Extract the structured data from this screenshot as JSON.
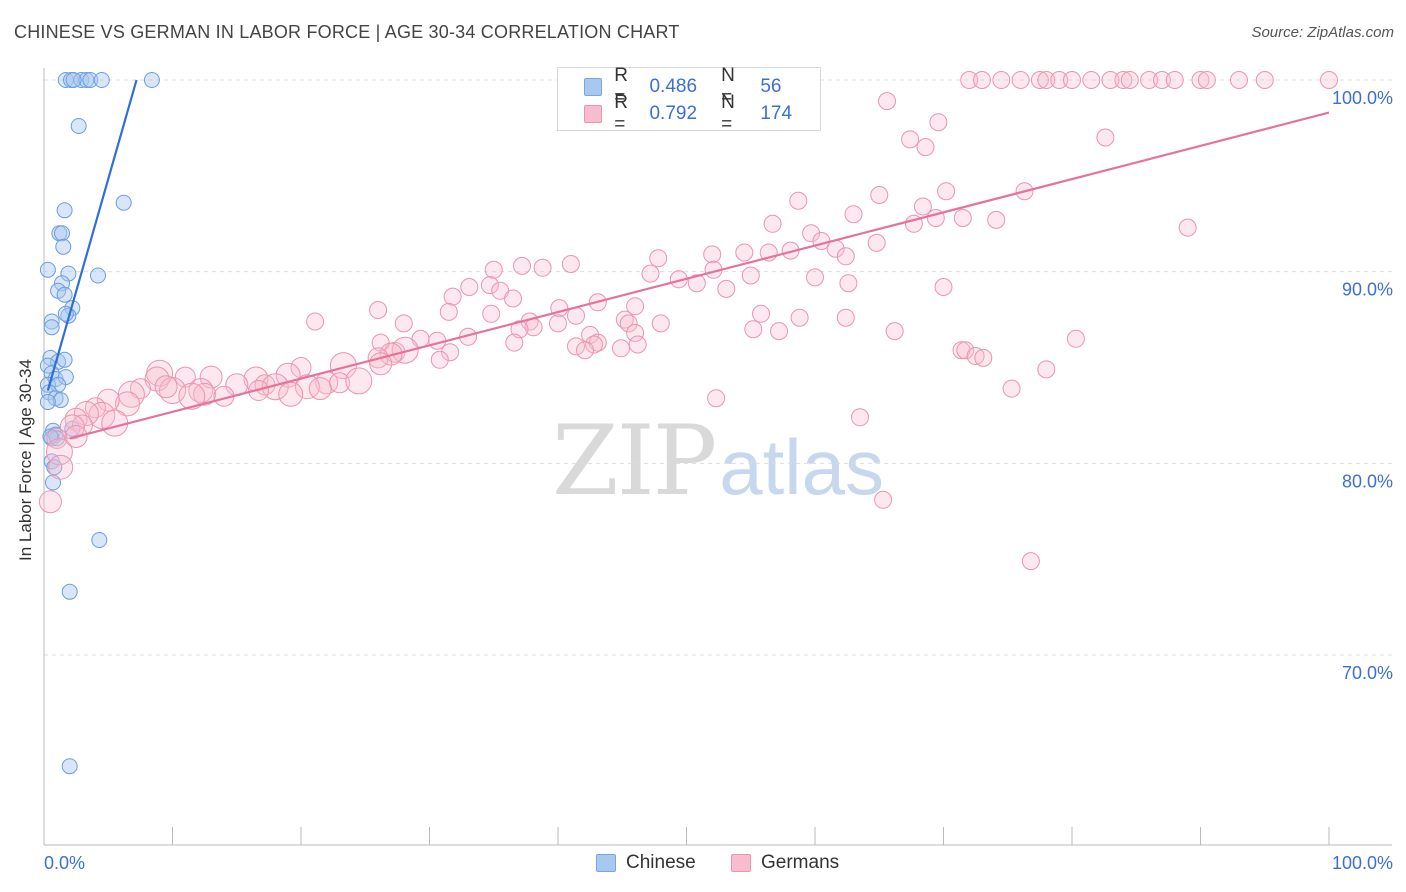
{
  "header": {
    "title": "CHINESE VS GERMAN IN LABOR FORCE | AGE 30-34 CORRELATION CHART",
    "source": "Source: ZipAtlas.com"
  },
  "watermark": {
    "zip": "ZIP",
    "atlas": "atlas"
  },
  "legend": {
    "rows": [
      {
        "r_label": "R =",
        "r_value": "0.486",
        "n_label": "N =",
        "n_value": "56",
        "color": "#a9c8f0",
        "stroke": "#7aa6e0"
      },
      {
        "r_label": "R =",
        "r_value": "0.792",
        "n_label": "N =",
        "n_value": "174",
        "color": "#f7bccd",
        "stroke": "#ee93af"
      }
    ]
  },
  "bottom_legend": [
    {
      "label": "Chinese",
      "color": "#a9c8f0",
      "stroke": "#7aa6e0"
    },
    {
      "label": "Germans",
      "color": "#f7bccd",
      "stroke": "#ee93af"
    }
  ],
  "chart_data": {
    "type": "scatter",
    "title": "CHINESE VS GERMAN IN LABOR FORCE | AGE 30-34 CORRELATION CHART",
    "xlabel": "",
    "ylabel": "In Labor Force | Age 30-34",
    "xlim": [
      0,
      100
    ],
    "ylim": [
      60.5,
      101.5
    ],
    "x_tick_labels": [
      "0.0%",
      "100.0%"
    ],
    "y_ticks": [
      70,
      80,
      90,
      100
    ],
    "y_tick_labels": [
      "70.0%",
      "80.0%",
      "90.0%",
      "100.0%"
    ],
    "grid": true,
    "colors": {
      "chinese_line": "#2f6fd6",
      "german_line": "#e5739c",
      "axis_text": "#3b6fd6"
    },
    "series": [
      {
        "name": "Chinese",
        "trend": {
          "x": [
            0.3,
            7.2
          ],
          "y": [
            83.8,
            100.0
          ]
        },
        "points": [
          [
            1.7,
            100
          ],
          [
            2.1,
            100
          ],
          [
            2.9,
            100
          ],
          [
            3.3,
            100
          ],
          [
            3.6,
            100
          ],
          [
            4.5,
            100
          ],
          [
            8.4,
            100
          ],
          [
            2.3,
            100
          ],
          [
            2.7,
            97.6
          ],
          [
            1.6,
            93.2
          ],
          [
            1.2,
            92.0
          ],
          [
            1.4,
            92.0
          ],
          [
            1.5,
            91.3
          ],
          [
            6.2,
            93.6
          ],
          [
            0.3,
            90.1
          ],
          [
            1.9,
            89.9
          ],
          [
            4.2,
            89.8
          ],
          [
            1.4,
            89.4
          ],
          [
            1.1,
            89.0
          ],
          [
            1.6,
            88.8
          ],
          [
            2.2,
            88.1
          ],
          [
            1.9,
            87.7
          ],
          [
            1.7,
            87.8
          ],
          [
            0.6,
            87.4
          ],
          [
            0.6,
            87.1
          ],
          [
            0.5,
            85.5
          ],
          [
            1.1,
            85.3
          ],
          [
            1.6,
            85.4
          ],
          [
            0.3,
            85.1
          ],
          [
            0.6,
            84.7
          ],
          [
            0.9,
            84.4
          ],
          [
            1.7,
            84.5
          ],
          [
            0.3,
            84.1
          ],
          [
            1.1,
            84.1
          ],
          [
            0.4,
            83.7
          ],
          [
            0.9,
            83.4
          ],
          [
            1.3,
            83.3
          ],
          [
            0.3,
            83.2
          ],
          [
            2.2,
            81.8
          ],
          [
            0.7,
            81.7
          ],
          [
            0.9,
            81.5
          ],
          [
            0.6,
            81.3
          ],
          [
            1.0,
            81.3
          ],
          [
            0.5,
            81.4
          ],
          [
            0.6,
            80.1
          ],
          [
            0.8,
            79.8
          ],
          [
            0.7,
            79.0
          ],
          [
            4.3,
            76.0
          ],
          [
            2.0,
            73.3
          ],
          [
            2.0,
            64.2
          ]
        ]
      },
      {
        "name": "Germans",
        "trend": {
          "x": [
            2.0,
            100.0
          ],
          "y": [
            81.3,
            98.3
          ]
        },
        "points": [
          [
            72,
            100
          ],
          [
            73,
            100
          ],
          [
            74.5,
            100
          ],
          [
            76,
            100
          ],
          [
            77.5,
            100
          ],
          [
            78,
            100
          ],
          [
            79,
            100
          ],
          [
            80,
            100
          ],
          [
            81.5,
            100
          ],
          [
            83,
            100
          ],
          [
            84,
            100
          ],
          [
            84.5,
            100
          ],
          [
            86,
            100
          ],
          [
            87,
            100
          ],
          [
            88,
            100
          ],
          [
            90,
            100
          ],
          [
            90.5,
            100
          ],
          [
            93,
            100
          ],
          [
            95,
            100
          ],
          [
            100,
            100
          ],
          [
            65.6,
            98.9
          ],
          [
            69.6,
            97.8
          ],
          [
            67.4,
            96.9
          ],
          [
            68.6,
            96.5
          ],
          [
            82.6,
            97.0
          ],
          [
            70.2,
            94.2
          ],
          [
            76.3,
            94.2
          ],
          [
            65.0,
            94.0
          ],
          [
            58.7,
            93.7
          ],
          [
            68.4,
            93.4
          ],
          [
            63.0,
            93.0
          ],
          [
            69.4,
            92.8
          ],
          [
            71.5,
            92.8
          ],
          [
            74.1,
            92.7
          ],
          [
            67.7,
            92.5
          ],
          [
            56.7,
            92.5
          ],
          [
            89.0,
            92.3
          ],
          [
            59.7,
            92.0
          ],
          [
            60.5,
            91.6
          ],
          [
            64.8,
            91.5
          ],
          [
            61.6,
            91.2
          ],
          [
            58.1,
            91.1
          ],
          [
            52.0,
            90.9
          ],
          [
            54.5,
            91.0
          ],
          [
            56.4,
            91.0
          ],
          [
            62.4,
            90.8
          ],
          [
            47.8,
            90.7
          ],
          [
            41.0,
            90.4
          ],
          [
            37.2,
            90.3
          ],
          [
            38.8,
            90.2
          ],
          [
            35.0,
            90.1
          ],
          [
            52.1,
            90.1
          ],
          [
            47.2,
            89.9
          ],
          [
            55.0,
            89.8
          ],
          [
            60.0,
            89.7
          ],
          [
            49.4,
            89.6
          ],
          [
            50.8,
            89.4
          ],
          [
            34.7,
            89.3
          ],
          [
            33.1,
            89.2
          ],
          [
            62.6,
            89.4
          ],
          [
            70.0,
            89.2
          ],
          [
            53.1,
            89.1
          ],
          [
            35.5,
            89.0
          ],
          [
            31.8,
            88.7
          ],
          [
            36.5,
            88.6
          ],
          [
            43.1,
            88.4
          ],
          [
            46.0,
            88.2
          ],
          [
            40.1,
            88.1
          ],
          [
            26.0,
            88.0
          ],
          [
            31.5,
            87.9
          ],
          [
            34.8,
            87.8
          ],
          [
            41.4,
            87.7
          ],
          [
            55.8,
            87.8
          ],
          [
            62.4,
            87.6
          ],
          [
            58.8,
            87.6
          ],
          [
            45.2,
            87.5
          ],
          [
            37.8,
            87.4
          ],
          [
            28.0,
            87.3
          ],
          [
            21.1,
            87.4
          ],
          [
            40.0,
            87.3
          ],
          [
            45.5,
            87.3
          ],
          [
            48.0,
            87.3
          ],
          [
            38.1,
            87.1
          ],
          [
            37.0,
            87.0
          ],
          [
            55.2,
            87.0
          ],
          [
            57.2,
            86.9
          ],
          [
            66.2,
            86.9
          ],
          [
            46.0,
            86.8
          ],
          [
            42.5,
            86.7
          ],
          [
            33.0,
            86.6
          ],
          [
            29.3,
            86.5
          ],
          [
            30.6,
            86.4
          ],
          [
            36.6,
            86.3
          ],
          [
            26.2,
            86.3
          ],
          [
            43.1,
            86.3
          ],
          [
            42.8,
            86.2
          ],
          [
            46.2,
            86.2
          ],
          [
            41.4,
            86.1
          ],
          [
            44.9,
            86.0
          ],
          [
            42.1,
            85.9
          ],
          [
            27.3,
            85.8
          ],
          [
            28.1,
            85.9
          ],
          [
            31.6,
            85.8
          ],
          [
            27.0,
            85.7
          ],
          [
            26.0,
            85.5
          ],
          [
            30.8,
            85.4
          ],
          [
            71.4,
            85.9
          ],
          [
            71.7,
            85.9
          ],
          [
            72.5,
            85.6
          ],
          [
            73.1,
            85.5
          ],
          [
            80.3,
            86.5
          ],
          [
            26.2,
            85.2
          ],
          [
            20.0,
            85.0
          ],
          [
            23.3,
            85.1
          ],
          [
            19.0,
            84.6
          ],
          [
            22.0,
            84.2
          ],
          [
            23.0,
            84.2
          ],
          [
            24.5,
            84.3
          ],
          [
            16.5,
            84.4
          ],
          [
            13.0,
            84.5
          ],
          [
            11.0,
            84.5
          ],
          [
            9.0,
            84.7
          ],
          [
            8.8,
            84.4
          ],
          [
            15.0,
            84.1
          ],
          [
            17.2,
            84.1
          ],
          [
            18.0,
            84.0
          ],
          [
            20.5,
            84.0
          ],
          [
            21.5,
            83.9
          ],
          [
            16.7,
            83.8
          ],
          [
            10.0,
            83.8
          ],
          [
            12.2,
            83.8
          ],
          [
            12.5,
            83.6
          ],
          [
            14.0,
            83.5
          ],
          [
            11.5,
            83.5
          ],
          [
            19.2,
            83.6
          ],
          [
            9.5,
            84.0
          ],
          [
            7.5,
            83.9
          ],
          [
            6.8,
            83.6
          ],
          [
            6.5,
            83.1
          ],
          [
            5.0,
            83.3
          ],
          [
            4.0,
            82.9
          ],
          [
            4.5,
            82.5
          ],
          [
            3.3,
            82.6
          ],
          [
            2.5,
            82.3
          ],
          [
            3.0,
            82.0
          ],
          [
            5.5,
            82.1
          ],
          [
            2.2,
            81.9
          ],
          [
            2.5,
            81.4
          ],
          [
            1.0,
            81.3
          ],
          [
            75.3,
            83.9
          ],
          [
            78.0,
            84.9
          ],
          [
            52.3,
            83.4
          ],
          [
            63.5,
            82.4
          ],
          [
            1.2,
            80.6
          ],
          [
            1.3,
            79.8
          ],
          [
            0.5,
            78.0
          ],
          [
            65.3,
            78.1
          ],
          [
            76.8,
            74.9
          ]
        ]
      }
    ]
  }
}
